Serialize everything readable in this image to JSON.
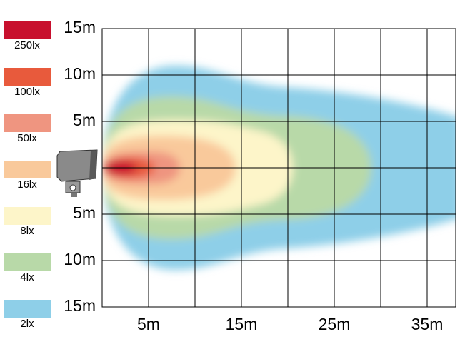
{
  "legend": [
    {
      "label": "250lx",
      "color": "#c8102e"
    },
    {
      "label": "100lx",
      "color": "#e85a3c"
    },
    {
      "label": "50lx",
      "color": "#ef9580"
    },
    {
      "label": "16lx",
      "color": "#f9c99b"
    },
    {
      "label": "8lx",
      "color": "#fdf5c9"
    },
    {
      "label": "4lx",
      "color": "#b8d9a8"
    },
    {
      "label": "2lx",
      "color": "#8ecfe8"
    }
  ],
  "y_axis": {
    "labels": [
      "15m",
      "10m",
      "5m",
      "5m",
      "10m",
      "15m"
    ]
  },
  "x_axis": {
    "labels": [
      "5m",
      "15m",
      "25m",
      "35m"
    ]
  }
}
